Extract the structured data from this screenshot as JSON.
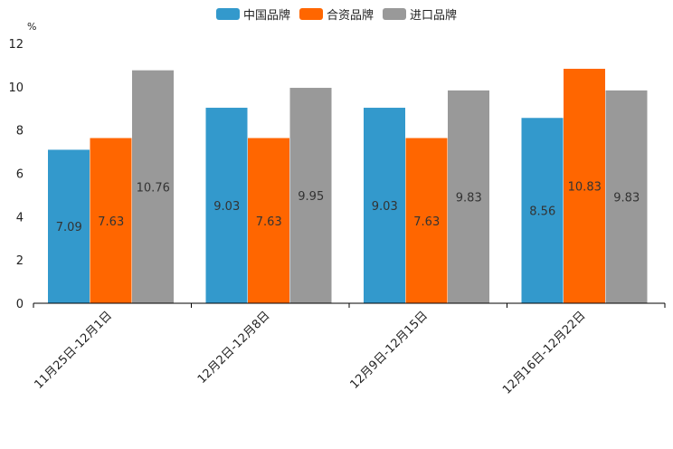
{
  "chart_data": {
    "type": "bar",
    "title": "",
    "xlabel": "",
    "ylabel": "%",
    "ylim": [
      0,
      12
    ],
    "yticks": [
      0,
      2,
      4,
      6,
      8,
      10,
      12
    ],
    "grid": false,
    "legend_position": "top-center",
    "categories": [
      "11月25日-12月1日",
      "12月2日-12月8日",
      "12月9日-12月15日",
      "12月16日-12月22日"
    ],
    "series": [
      {
        "name": "中国品牌",
        "color": "#3399cc",
        "values": [
          7.09,
          9.03,
          9.03,
          8.56
        ]
      },
      {
        "name": "合资品牌",
        "color": "#ff6600",
        "values": [
          7.63,
          7.63,
          7.63,
          10.83
        ]
      },
      {
        "name": "进口品牌",
        "color": "#999999",
        "values": [
          10.76,
          9.95,
          9.83,
          9.83
        ]
      }
    ]
  }
}
